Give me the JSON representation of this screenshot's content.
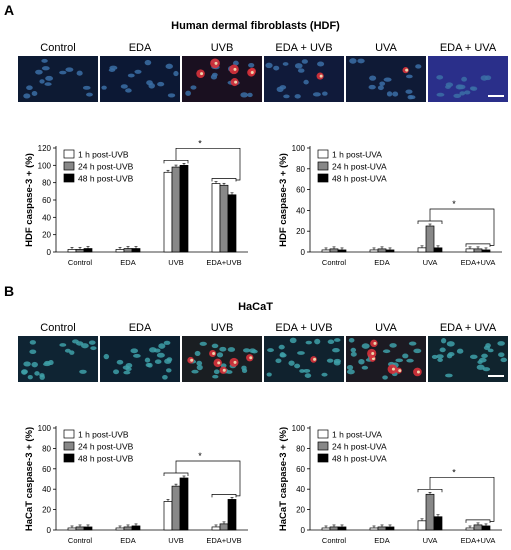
{
  "panels": [
    {
      "letter": "A",
      "title": "Human dermal fibroblasts (HDF)",
      "image_labels": [
        "Control",
        "EDA",
        "UVB",
        "EDA + UVB",
        "UVA",
        "EDA + UVA"
      ],
      "image_bg": [
        "#0d1a33",
        "#0c1834",
        "#1a1020",
        "#101a3a",
        "#0f1a36",
        "#2a2f8a"
      ]
    },
    {
      "letter": "B",
      "title": "HaCaT",
      "image_labels": [
        "Control",
        "EDA",
        "UVB",
        "EDA + UVB",
        "UVA",
        "EDA + UVA"
      ],
      "image_bg": [
        "#0f2433",
        "#0d2030",
        "#1a1e22",
        "#10222e",
        "#1c1a22",
        "#10242e"
      ]
    }
  ],
  "chart_data": [
    {
      "type": "bar",
      "panel": "A",
      "ylabel": "HDF caspase-3 + (%)",
      "ylim": [
        0,
        120
      ],
      "yticks": [
        0,
        20,
        40,
        60,
        80,
        100,
        120
      ],
      "categories": [
        "Control",
        "EDA",
        "UVB",
        "EDA+UVB"
      ],
      "series": [
        {
          "name": "1 h post-UVB",
          "color": "#ffffff",
          "values": [
            3,
            3,
            92,
            79
          ]
        },
        {
          "name": "24 h post-UVB",
          "color": "#888888",
          "values": [
            3,
            4,
            98,
            77
          ]
        },
        {
          "name": "48 h post-UVB",
          "color": "#000000",
          "values": [
            4,
            4,
            100,
            66
          ]
        }
      ],
      "significance": "*"
    },
    {
      "type": "bar",
      "panel": "A",
      "ylabel": "HDF caspase-3 + (%)",
      "ylim": [
        0,
        100
      ],
      "yticks": [
        0,
        20,
        40,
        60,
        80,
        100
      ],
      "categories": [
        "Control",
        "EDA",
        "UVA",
        "EDA+UVA"
      ],
      "series": [
        {
          "name": "1 h post-UVA",
          "color": "#ffffff",
          "values": [
            2,
            2,
            4,
            3
          ]
        },
        {
          "name": "24 h post-UVA",
          "color": "#888888",
          "values": [
            3,
            3,
            25,
            3
          ]
        },
        {
          "name": "48 h post-UVA",
          "color": "#000000",
          "values": [
            2,
            2,
            4,
            2
          ]
        }
      ],
      "significance": "*"
    },
    {
      "type": "bar",
      "panel": "B",
      "ylabel": "HaCaT caspase-3 + (%)",
      "ylim": [
        0,
        100
      ],
      "yticks": [
        0,
        20,
        40,
        60,
        80,
        100
      ],
      "categories": [
        "Control",
        "EDA",
        "UVB",
        "EDA+UVB"
      ],
      "series": [
        {
          "name": "1 h post-UVB",
          "color": "#ffffff",
          "values": [
            2,
            2,
            28,
            3
          ]
        },
        {
          "name": "24 h post-UVB",
          "color": "#888888",
          "values": [
            3,
            3,
            43,
            6
          ]
        },
        {
          "name": "48 h post-UVB",
          "color": "#000000",
          "values": [
            3,
            4,
            51,
            30
          ]
        }
      ],
      "significance": "*"
    },
    {
      "type": "bar",
      "panel": "B",
      "ylabel": "HaCaT caspase-3 + (%)",
      "ylim": [
        0,
        100
      ],
      "yticks": [
        0,
        20,
        40,
        60,
        80,
        100
      ],
      "categories": [
        "Control",
        "EDA",
        "UVA",
        "EDA+UVA"
      ],
      "series": [
        {
          "name": "1 h post-UVA",
          "color": "#ffffff",
          "values": [
            2,
            2,
            9,
            2
          ]
        },
        {
          "name": "24 h post-UVA",
          "color": "#888888",
          "values": [
            3,
            3,
            35,
            5
          ]
        },
        {
          "name": "48 h post-UVA",
          "color": "#000000",
          "values": [
            3,
            3,
            13,
            4
          ]
        }
      ],
      "significance": "*"
    }
  ]
}
